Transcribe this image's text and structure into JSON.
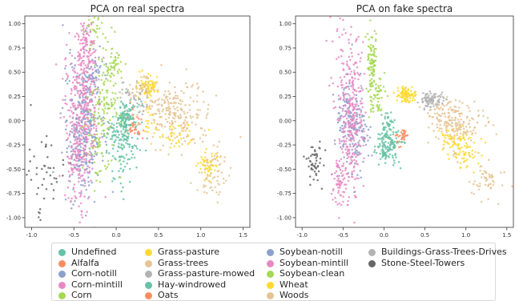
{
  "chart_data": [
    {
      "type": "scatter",
      "title": "PCA on real spectra",
      "xlabel": "",
      "ylabel": "",
      "xlim": [
        -1.08,
        1.58
      ],
      "ylim": [
        -1.1,
        1.08
      ],
      "xticks": [
        -1.0,
        -0.5,
        0.0,
        0.5,
        1.0,
        1.5
      ],
      "xtick_labels": [
        "-1.0",
        "-0.5",
        "0.0",
        "0.5",
        "1.0",
        "1.5"
      ],
      "yticks": [
        1.0,
        0.75,
        0.5,
        0.25,
        0.0,
        -0.25,
        -0.5,
        -0.75,
        -1.0
      ],
      "ytick_labels": [
        "1.00",
        "0.75",
        "0.50",
        "0.25",
        "0.00",
        "-0.25",
        "-0.50",
        "-0.75",
        "-1.00"
      ],
      "grid": false,
      "series": [
        {
          "name": "Undefined",
          "color": "#66c2a5",
          "clusters": [
            [
              0.08,
              -0.05,
              0.11,
              0.16,
              120
            ],
            [
              0.05,
              -0.32,
              0.08,
              0.16,
              70
            ],
            [
              0.14,
              0.02,
              0.05,
              0.08,
              35
            ]
          ]
        },
        {
          "name": "Alfalfa",
          "color": "#fc8d62",
          "clusters": [
            [
              0.2,
              -0.05,
              0.06,
              0.08,
              25
            ]
          ]
        },
        {
          "name": "Corn-notill",
          "color": "#8da0cb",
          "clusters": [
            [
              -0.4,
              -0.05,
              0.12,
              0.38,
              180
            ],
            [
              -0.28,
              0.45,
              0.06,
              0.12,
              60
            ]
          ]
        },
        {
          "name": "Corn-mintill",
          "color": "#e78ac3",
          "clusters": [
            [
              -0.42,
              0.05,
              0.1,
              0.4,
              200
            ],
            [
              -0.34,
              0.75,
              0.05,
              0.18,
              90
            ],
            [
              -0.48,
              -0.5,
              0.06,
              0.22,
              70
            ]
          ]
        },
        {
          "name": "Corn",
          "color": "#a6d854",
          "clusters": [
            [
              -0.25,
              0.95,
              0.05,
              0.07,
              25
            ],
            [
              -0.02,
              0.58,
              0.05,
              0.08,
              40
            ],
            [
              -0.22,
              -0.1,
              0.08,
              0.28,
              90
            ]
          ]
        },
        {
          "name": "Grass-pasture",
          "color": "#ffd92f",
          "clusters": [
            [
              0.38,
              0.36,
              0.06,
              0.06,
              80
            ],
            [
              0.4,
              0.0,
              0.05,
              0.1,
              25
            ],
            [
              1.1,
              -0.45,
              0.07,
              0.08,
              50
            ]
          ]
        },
        {
          "name": "Grass-trees",
          "color": "#e5c494",
          "clusters": [
            [
              0.3,
              0.3,
              0.1,
              0.07,
              50
            ],
            [
              0.75,
              0.05,
              0.2,
              0.16,
              170
            ],
            [
              1.15,
              -0.55,
              0.1,
              0.12,
              60
            ]
          ]
        },
        {
          "name": "Grass-pasture-mowed",
          "color": "#b3b3b3",
          "clusters": [
            [
              0.15,
              0.3,
              0.06,
              0.06,
              15
            ]
          ]
        },
        {
          "name": "Hay-windrowed",
          "color": "#66c2a5",
          "clusters": [
            [
              0.12,
              0.0,
              0.04,
              0.06,
              30
            ]
          ]
        },
        {
          "name": "Oats",
          "color": "#fc8d62",
          "clusters": [
            [
              0.22,
              -0.1,
              0.03,
              0.05,
              10
            ]
          ]
        },
        {
          "name": "Soybean-notill",
          "color": "#8da0cb",
          "clusters": [
            [
              -0.36,
              -0.2,
              0.08,
              0.26,
              110
            ]
          ]
        },
        {
          "name": "Soybean-mintill",
          "color": "#e78ac3",
          "clusters": [
            [
              -0.38,
              0.2,
              0.09,
              0.45,
              190
            ]
          ]
        },
        {
          "name": "Soybean-clean",
          "color": "#a6d854",
          "clusters": [
            [
              -0.1,
              0.25,
              0.08,
              0.3,
              80
            ]
          ]
        },
        {
          "name": "Wheat",
          "color": "#ffd92f",
          "clusters": [
            [
              0.72,
              -0.15,
              0.1,
              0.08,
              35
            ]
          ]
        },
        {
          "name": "Woods",
          "color": "#e5c494",
          "clusters": [
            [
              0.6,
              0.15,
              0.1,
              0.08,
              50
            ]
          ]
        },
        {
          "name": "Buildings-Grass-Trees-Drives",
          "color": "#b3b3b3",
          "clusters": [
            [
              0.3,
              0.2,
              0.07,
              0.07,
              20
            ]
          ]
        },
        {
          "name": "Stone-Steel-Towers",
          "color": "#666666",
          "clusters": [
            [
              -0.85,
              -0.45,
              0.09,
              0.25,
              45
            ]
          ]
        }
      ]
    },
    {
      "type": "scatter",
      "title": "PCA on fake spectra",
      "xlabel": "",
      "ylabel": "",
      "xlim": [
        -1.08,
        1.58
      ],
      "ylim": [
        -1.1,
        1.08
      ],
      "xticks": [
        -1.0,
        -0.5,
        0.0,
        0.5,
        1.0,
        1.5
      ],
      "xtick_labels": [
        "-1.0",
        "-0.5",
        "0.0",
        "0.5",
        "1.0",
        "1.5"
      ],
      "yticks": [
        1.0,
        0.75,
        0.5,
        0.25,
        0.0,
        -0.25,
        -0.5,
        -0.75,
        -1.0
      ],
      "ytick_labels": [
        "1.00",
        "0.75",
        "0.50",
        "0.25",
        "0.00",
        "-0.25",
        "-0.50",
        "-0.75",
        "-1.00"
      ],
      "grid": false,
      "series": [
        {
          "name": "Undefined",
          "color": "#66c2a5",
          "clusters": [
            [
              0.05,
              -0.25,
              0.08,
              0.1,
              100
            ],
            [
              0.05,
              -0.05,
              0.05,
              0.07,
              40
            ]
          ]
        },
        {
          "name": "Alfalfa",
          "color": "#fc8d62",
          "clusters": [
            [
              0.25,
              -0.15,
              0.04,
              0.05,
              20
            ]
          ]
        },
        {
          "name": "Corn-notill",
          "color": "#8da0cb",
          "clusters": [
            [
              -0.45,
              0.05,
              0.06,
              0.25,
              120
            ]
          ]
        },
        {
          "name": "Corn-mintill",
          "color": "#e78ac3",
          "clusters": [
            [
              -0.45,
              0.1,
              0.09,
              0.55,
              240
            ],
            [
              -0.55,
              -0.6,
              0.04,
              0.12,
              50
            ]
          ]
        },
        {
          "name": "Corn",
          "color": "#a6d854",
          "clusters": [
            [
              -0.15,
              0.6,
              0.03,
              0.15,
              80
            ]
          ]
        },
        {
          "name": "Grass-pasture",
          "color": "#ffd92f",
          "clusters": [
            [
              0.27,
              0.27,
              0.05,
              0.04,
              100
            ],
            [
              0.95,
              -0.3,
              0.1,
              0.1,
              80
            ]
          ]
        },
        {
          "name": "Grass-trees",
          "color": "#e5c494",
          "clusters": [
            [
              0.9,
              -0.05,
              0.15,
              0.12,
              160
            ],
            [
              1.25,
              -0.6,
              0.1,
              0.1,
              50
            ]
          ]
        },
        {
          "name": "Grass-pasture-mowed",
          "color": "#b3b3b3",
          "clusters": [
            [
              0.55,
              0.22,
              0.05,
              0.04,
              60
            ]
          ]
        },
        {
          "name": "Hay-windrowed",
          "color": "#66c2a5",
          "clusters": [
            [
              0.0,
              -0.3,
              0.05,
              0.06,
              30
            ]
          ]
        },
        {
          "name": "Oats",
          "color": "#fc8d62",
          "clusters": [
            [
              0.2,
              -0.2,
              0.03,
              0.04,
              10
            ]
          ]
        },
        {
          "name": "Soybean-notill",
          "color": "#8da0cb",
          "clusters": [
            [
              -0.3,
              -0.1,
              0.06,
              0.2,
              80
            ]
          ]
        },
        {
          "name": "Soybean-mintill",
          "color": "#e78ac3",
          "clusters": [
            [
              -0.35,
              0.0,
              0.06,
              0.3,
              120
            ]
          ]
        },
        {
          "name": "Soybean-clean",
          "color": "#a6d854",
          "clusters": [
            [
              -0.1,
              0.25,
              0.05,
              0.12,
              60
            ]
          ]
        },
        {
          "name": "Wheat",
          "color": "#ffd92f",
          "clusters": [
            [
              0.8,
              -0.2,
              0.06,
              0.05,
              25
            ]
          ]
        },
        {
          "name": "Woods",
          "color": "#e5c494",
          "clusters": [
            [
              0.7,
              0.1,
              0.08,
              0.07,
              40
            ]
          ]
        },
        {
          "name": "Buildings-Grass-Trees-Drives",
          "color": "#b3b3b3",
          "clusters": [
            [
              0.65,
              0.22,
              0.06,
              0.04,
              30
            ]
          ]
        },
        {
          "name": "Stone-Steel-Towers",
          "color": "#666666",
          "clusters": [
            [
              -0.85,
              -0.45,
              0.05,
              0.1,
              50
            ]
          ]
        }
      ]
    }
  ],
  "legend": {
    "placement": "bottom-center",
    "columns": 4,
    "items": [
      {
        "label": "Undefined",
        "color": "#66c2a5"
      },
      {
        "label": "Alfalfa",
        "color": "#fc8d62"
      },
      {
        "label": "Corn-notill",
        "color": "#8da0cb"
      },
      {
        "label": "Corn-mintill",
        "color": "#e78ac3"
      },
      {
        "label": "Corn",
        "color": "#a6d854"
      },
      {
        "label": "Grass-pasture",
        "color": "#ffd92f"
      },
      {
        "label": "Grass-trees",
        "color": "#e5c494"
      },
      {
        "label": "Grass-pasture-mowed",
        "color": "#b3b3b3"
      },
      {
        "label": "Hay-windrowed",
        "color": "#66c2a5"
      },
      {
        "label": "Oats",
        "color": "#fc8d62"
      },
      {
        "label": "Soybean-notill",
        "color": "#8da0cb"
      },
      {
        "label": "Soybean-mintill",
        "color": "#e78ac3"
      },
      {
        "label": "Soybean-clean",
        "color": "#a6d854"
      },
      {
        "label": "Wheat",
        "color": "#ffd92f"
      },
      {
        "label": "Woods",
        "color": "#e5c494"
      },
      {
        "label": "Buildings-Grass-Trees-Drives",
        "color": "#b3b3b3"
      },
      {
        "label": "Stone-Steel-Towers",
        "color": "#666666"
      }
    ]
  }
}
